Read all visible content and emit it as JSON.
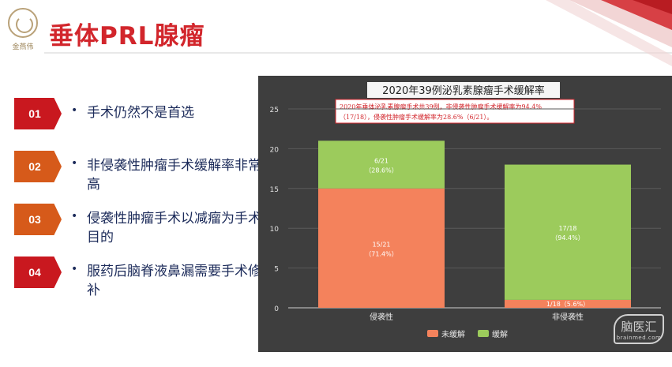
{
  "header": {
    "logo_text": "金燕伟",
    "title": "垂体PRL腺瘤"
  },
  "items": [
    {
      "num": "01",
      "text": "手术仍然不是首选",
      "color": "#c9181f"
    },
    {
      "num": "02",
      "text": "非侵袭性肿瘤手术缓解率非常高",
      "color": "#d65a1a"
    },
    {
      "num": "03",
      "text": "侵袭性肿瘤手术以减瘤为手术目的",
      "color": "#d65a1a"
    },
    {
      "num": "04",
      "text": "服药后脑脊液鼻漏需要手术修补",
      "color": "#c9181f"
    }
  ],
  "chart_data": {
    "type": "bar",
    "stacked": true,
    "title": "2020年39例泌乳素腺瘤手术缓解率",
    "annotation_line1": "2020年垂体泌乳素腺瘤手术共39例，非侵袭性肿瘤手术缓解率为94.4%",
    "annotation_line2": "（17/18），侵袭性肿瘤手术缓解率为28.6%（6/21）。",
    "categories": [
      "侵袭性",
      "非侵袭性"
    ],
    "ylim": [
      0,
      25
    ],
    "yticks": [
      0,
      5,
      10,
      15,
      20,
      25
    ],
    "series": [
      {
        "name": "未缓解",
        "color": "#f4825c",
        "values": [
          15,
          1
        ],
        "labels": [
          "15/21",
          "1/18"
        ],
        "pcts": [
          "（71.4%）",
          "（5.6%）"
        ]
      },
      {
        "name": "缓解",
        "color": "#9ccb5c",
        "values": [
          6,
          17
        ],
        "labels": [
          "6/21",
          "17/18"
        ],
        "pcts": [
          "（28.6%）",
          "（94.4%）"
        ]
      }
    ],
    "legend_position": "bottom"
  },
  "watermark": {
    "main": "脑医汇",
    "sub": "brainmed.com"
  }
}
